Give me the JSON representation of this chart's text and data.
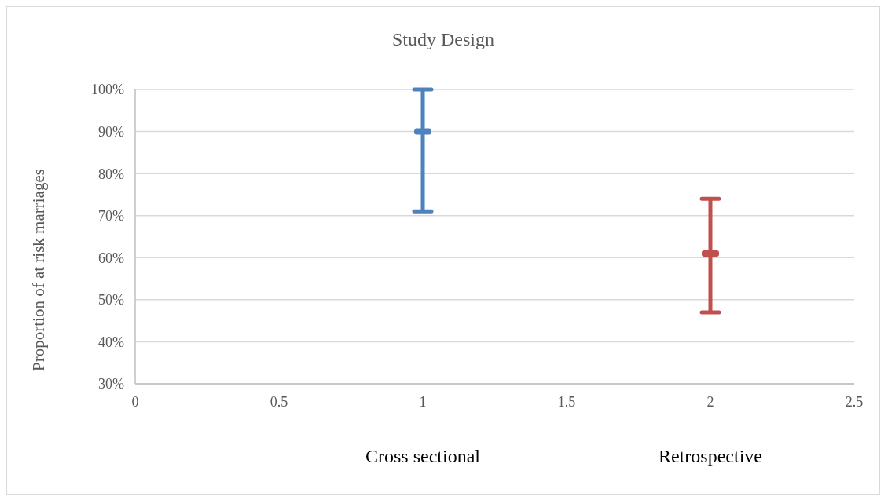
{
  "chart_data": {
    "type": "scatter",
    "title": "Study Design",
    "ylabel": "Proportion of at risk marriages",
    "xlim": [
      0,
      2.5
    ],
    "xticks": [
      0,
      0.5,
      1,
      1.5,
      2,
      2.5
    ],
    "ylim": [
      30,
      100
    ],
    "yticks": [
      {
        "value": 30,
        "label": "30%"
      },
      {
        "value": 40,
        "label": "40%"
      },
      {
        "value": 50,
        "label": "50%"
      },
      {
        "value": 60,
        "label": "60%"
      },
      {
        "value": 70,
        "label": "70%"
      },
      {
        "value": 80,
        "label": "80%"
      },
      {
        "value": 90,
        "label": "90%"
      },
      {
        "value": 100,
        "label": "100%"
      }
    ],
    "grid": "y",
    "legend": false,
    "series": [
      {
        "color": "#4f81bd",
        "x": [
          1
        ],
        "values": [
          90
        ],
        "errors": [
          [
            71,
            100
          ]
        ]
      },
      {
        "color": "#c0504d",
        "x": [
          2
        ],
        "values": [
          61
        ],
        "errors": [
          [
            47,
            74
          ]
        ]
      }
    ],
    "annotations": [
      "Cross sectional",
      "Retrospective"
    ]
  }
}
